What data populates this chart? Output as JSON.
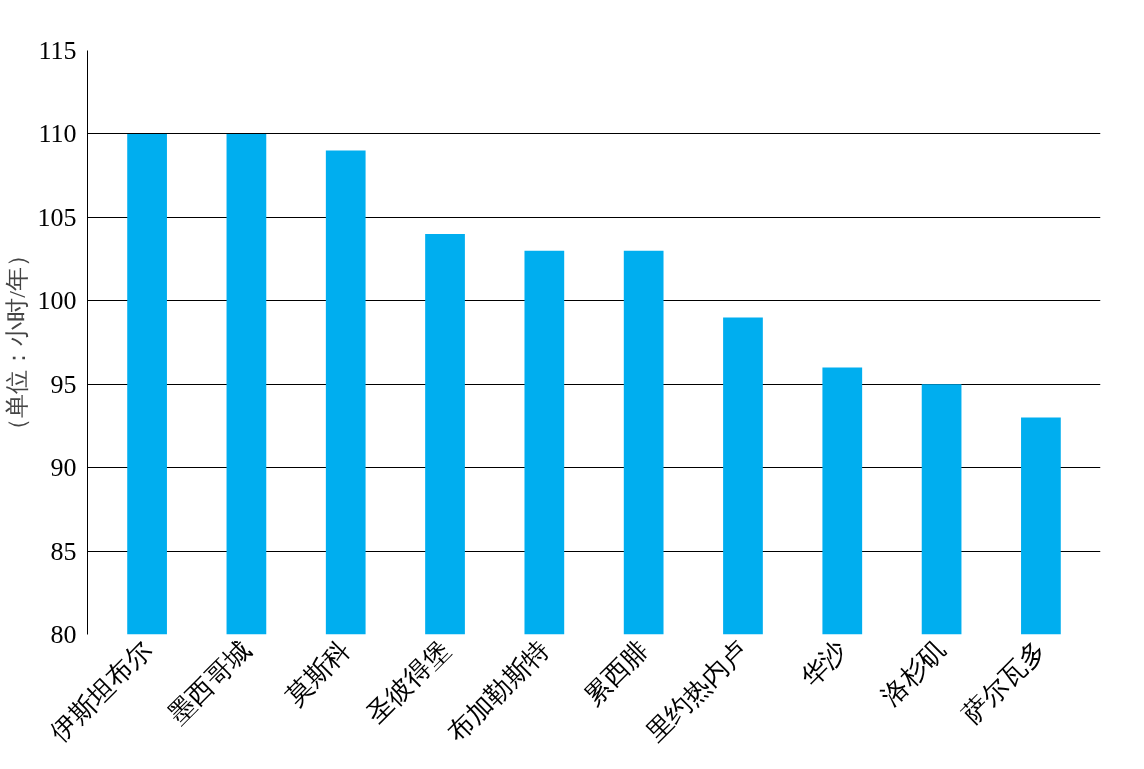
{
  "chart_data": {
    "type": "bar",
    "ylabel": "（单位：小时/年）",
    "categories": [
      "伊斯坦布尔",
      "墨西哥城",
      "莫斯科",
      "圣彼得堡",
      "布加勒斯特",
      "累西腓",
      "里约热内卢",
      "华沙",
      "洛杉矶",
      "萨尔瓦多"
    ],
    "values": [
      110,
      110,
      109,
      104,
      103,
      103,
      99,
      96,
      95,
      93
    ],
    "color": "#00aeef",
    "ylim": [
      80,
      115
    ],
    "yticks": [
      80,
      85,
      90,
      95,
      100,
      105,
      110,
      115
    ],
    "grid": "y"
  }
}
